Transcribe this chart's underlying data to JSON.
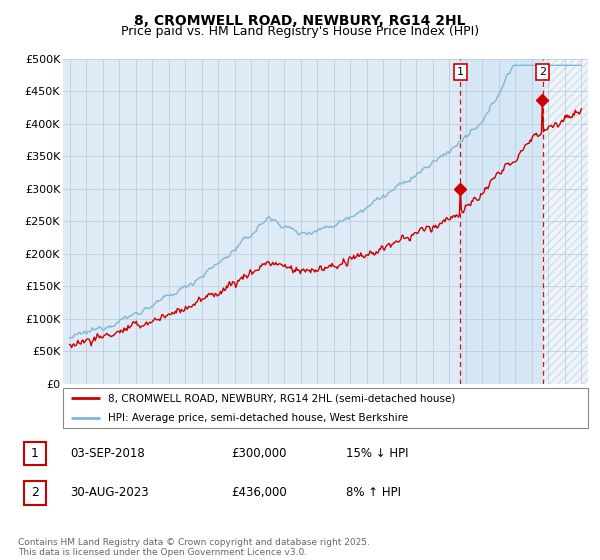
{
  "title": "8, CROMWELL ROAD, NEWBURY, RG14 2HL",
  "subtitle": "Price paid vs. HM Land Registry's House Price Index (HPI)",
  "ylabel_ticks": [
    "£0",
    "£50K",
    "£100K",
    "£150K",
    "£200K",
    "£250K",
    "£300K",
    "£350K",
    "£400K",
    "£450K",
    "£500K"
  ],
  "ytick_values": [
    0,
    50000,
    100000,
    150000,
    200000,
    250000,
    300000,
    350000,
    400000,
    450000,
    500000
  ],
  "ylim": [
    0,
    500000
  ],
  "hpi_color": "#7eb8d8",
  "hpi_fill_color": "#d6e8f5",
  "price_color": "#cc0000",
  "dashed_color": "#cc0000",
  "marker1_year": 2018.67,
  "marker2_year": 2023.66,
  "marker1_price": 300000,
  "marker2_price": 436000,
  "transaction1": {
    "date": "03-SEP-2018",
    "price": 300000,
    "pct": "15%",
    "dir": "↓"
  },
  "transaction2": {
    "date": "30-AUG-2023",
    "price": 436000,
    "pct": "8%",
    "dir": "↑"
  },
  "legend1": "8, CROMWELL ROAD, NEWBURY, RG14 2HL (semi-detached house)",
  "legend2": "HPI: Average price, semi-detached house, West Berkshire",
  "footer": "Contains HM Land Registry data © Crown copyright and database right 2025.\nThis data is licensed under the Open Government Licence v3.0.",
  "background_color": "#deeaf5",
  "hatch_color": "#c8d8e8",
  "plot_bg": "#ffffff",
  "xmin": 1995,
  "xmax": 2026
}
